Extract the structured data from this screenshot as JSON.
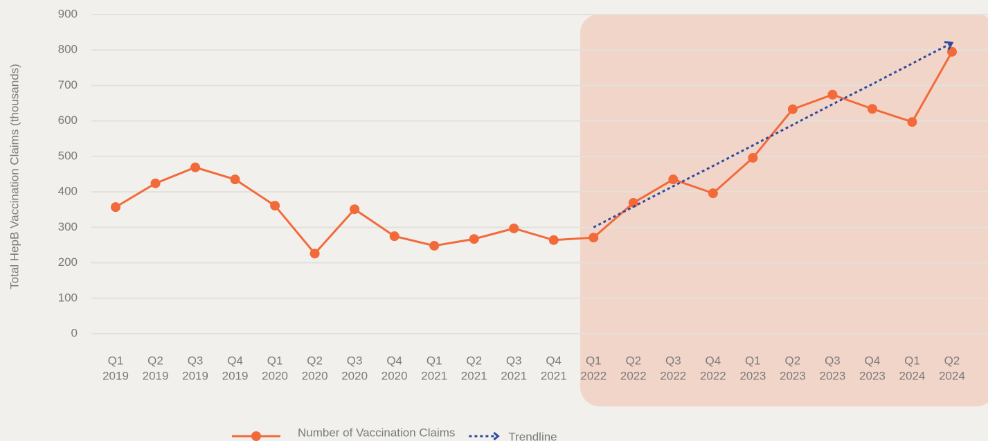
{
  "chart_data": {
    "type": "line",
    "ylabel": "Total HepB Vaccination Claims (thousands)",
    "categories": [
      [
        "Q1",
        "2019"
      ],
      [
        "Q2",
        "2019"
      ],
      [
        "Q3",
        "2019"
      ],
      [
        "Q4",
        "2019"
      ],
      [
        "Q1",
        "2020"
      ],
      [
        "Q2",
        "2020"
      ],
      [
        "Q3",
        "2020"
      ],
      [
        "Q4",
        "2020"
      ],
      [
        "Q1",
        "2021"
      ],
      [
        "Q2",
        "2021"
      ],
      [
        "Q3",
        "2021"
      ],
      [
        "Q4",
        "2021"
      ],
      [
        "Q1",
        "2022"
      ],
      [
        "Q2",
        "2022"
      ],
      [
        "Q3",
        "2022"
      ],
      [
        "Q4",
        "2022"
      ],
      [
        "Q1",
        "2023"
      ],
      [
        "Q2",
        "2023"
      ],
      [
        "Q3",
        "2023"
      ],
      [
        "Q4",
        "2023"
      ],
      [
        "Q1",
        "2024"
      ],
      [
        "Q2",
        "2024"
      ]
    ],
    "series": [
      {
        "name": "Number of Vaccination Claims",
        "color": "#f26a3a",
        "style": "solid",
        "markers": true,
        "values": [
          357,
          424,
          469,
          435,
          361,
          226,
          351,
          275,
          248,
          267,
          297,
          264,
          271,
          369,
          435,
          396,
          496,
          633,
          674,
          634,
          597,
          795
        ]
      },
      {
        "name": "Trendline",
        "color": "#2e4a9e",
        "style": "dotted",
        "markers": false,
        "values": [
          null,
          null,
          null,
          null,
          null,
          null,
          null,
          null,
          null,
          null,
          null,
          null,
          300,
          358,
          416,
          473,
          531,
          589,
          647,
          704,
          762,
          820
        ]
      }
    ],
    "ylim": [
      0,
      900
    ],
    "yticks": [
      0,
      100,
      200,
      300,
      400,
      500,
      600,
      700,
      800,
      900
    ],
    "grid": true,
    "legend": "bottom"
  }
}
